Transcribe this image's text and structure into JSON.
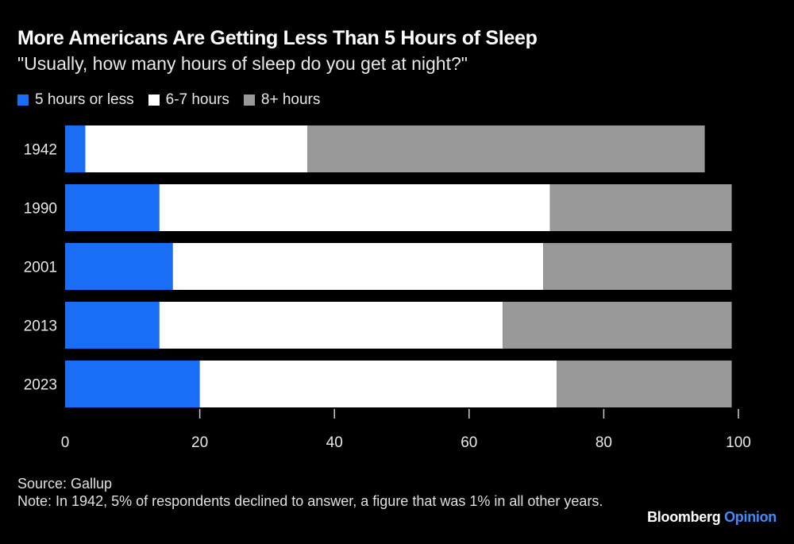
{
  "title": "More Americans Are Getting Less Than 5 Hours of Sleep",
  "subtitle": "\"Usually, how many hours of sleep do you get at night?\"",
  "legend": [
    {
      "label": "5 hours or less",
      "color": "#1a6ef5"
    },
    {
      "label": "6-7 hours",
      "color": "#ffffff"
    },
    {
      "label": "8+ hours",
      "color": "#999999"
    }
  ],
  "chart_data": {
    "type": "bar",
    "orientation": "horizontal",
    "stacked": true,
    "categories": [
      "1942",
      "1990",
      "2001",
      "2013",
      "2023"
    ],
    "series": [
      {
        "name": "5 hours or less",
        "color": "#1a6ef5",
        "values": [
          3,
          14,
          16,
          14,
          20
        ]
      },
      {
        "name": "6-7 hours",
        "color": "#ffffff",
        "values": [
          33,
          58,
          55,
          51,
          53
        ]
      },
      {
        "name": "8+ hours",
        "color": "#999999",
        "values": [
          59,
          27,
          28,
          34,
          26
        ]
      }
    ],
    "xlim": [
      0,
      100
    ],
    "xticks": [
      "0",
      "20",
      "40",
      "60",
      "80",
      "100"
    ],
    "grid": false,
    "legend_position": "top-left"
  },
  "footer": {
    "source": "Source: Gallup",
    "note": "Note: In 1942, 5% of respondents declined to answer, a figure that was 1% in all other years."
  },
  "brand": {
    "name": "Bloomberg",
    "section": "Opinion"
  }
}
